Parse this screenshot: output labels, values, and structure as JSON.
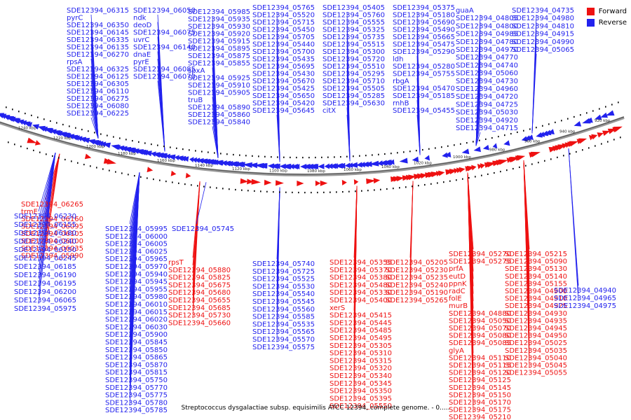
{
  "legend": {
    "forward_label": "Forward",
    "reverse_label": "Reverse",
    "forward_color": "#ee1111",
    "reverse_color": "#2222ee"
  },
  "caption": "Streptococcus dysgalactiae subsp. equisimilis ATCC 12394, complete genome. - 0.....",
  "scale_labels": [
    "1240 kbp",
    "1220 kbp",
    "1200 kbp",
    "1180 kbp",
    "1160 kbp",
    "1140 kbp",
    "1120 kbp",
    "1100 kbp",
    "1080 kbp",
    "1060 kbp",
    "1040 kbp",
    "1020 kbp",
    "1000 kbp",
    "980 kbp",
    "960 kbp",
    "940 kbp",
    "920 kbp"
  ],
  "reverse_genes_upper": [
    "SDE12394_06315",
    "pyrC",
    "SDE12394_06350",
    "SDE12394_06145",
    "SDE12394_06335",
    "SDE12394_06135",
    "SDE12394_06270",
    "rpsA",
    "SDE12394_06325",
    "SDE12394_06125",
    "SDE12394_06305",
    "SDE12394_06110",
    "SDE12394_06275",
    "SDE12394_06080",
    "SDE12394_06225",
    "SDE12394_06050",
    "ndk",
    "deoD",
    "SDE12394_06075",
    "uvrC",
    "SDE12394_06140",
    "dnaE",
    "pyrE",
    "SDE12394_06085",
    "SDE12394_06070",
    "SDE12394_05985",
    "SDE12394_05935",
    "SDE12394_05930",
    "SDE12394_05920",
    "SDE12394_05915",
    "SDE12394_05895",
    "SDE12394_05875",
    "SDE12394_05855",
    "spxA",
    "SDE12394_05925",
    "SDE12394_05910",
    "SDE12394_05905",
    "truB",
    "SDE12394_05890",
    "SDE12394_05860",
    "SDE12394_05840",
    "SDE12394_05765",
    "SDE12394_05520",
    "SDE12394_05715",
    "SDE12394_05450",
    "SDE12394_05705",
    "SDE12394_05440",
    "SDE12394_05700",
    "SDE12394_05435",
    "SDE12394_05695",
    "SDE12394_05430",
    "SDE12394_05670",
    "SDE12394_05425",
    "SDE12394_05650",
    "SDE12394_05420",
    "SDE12394_05645",
    "SDE12394_05405",
    "SDE12394_05760",
    "SDE12394_05555",
    "SDE12394_05325",
    "SDE12394_05735",
    "SDE12394_05515",
    "SDE12394_05300",
    "SDE12394_05720",
    "SDE12394_05510",
    "SDE12394_05295",
    "SDE12394_05710",
    "SDE12394_05505",
    "SDE12394_05285",
    "SDE12394_05630",
    "citX",
    "SDE12394_05375",
    "SDE12394_05180",
    "SDE12394_05690",
    "SDE12394_05490",
    "SDE12394_05665",
    "SDE12394_05475",
    "SDE12394_05290",
    "ldh",
    "SDE12394_05280",
    "SDE12394_05755",
    "rbgA",
    "SDE12394_05470",
    "SDE12394_05185",
    "rnhB",
    "SDE12394_05455",
    "guaA",
    "SDE12394_04805",
    "SDE12394_04800",
    "SDE12394_04985",
    "SDE12394_04780",
    "SDE12394_04970",
    "SDE12394_04770",
    "SDE12394_04740",
    "SDE12394_05060",
    "SDE12394_04730",
    "SDE12394_04960",
    "SDE12394_04720",
    "SDE12394_04725",
    "SDE12394_05030",
    "SDE12394_04920",
    "SDE12394_04715",
    "SDE12394_04735",
    "SDE12394_04980",
    "SDE12394_04810",
    "SDE12394_04915",
    "SDE12394_04990",
    "SDE12394_05065"
  ],
  "forward_genes_lower": [
    "SDE12394_06265",
    "trmE",
    "SDE12394_06160",
    "SDE12394_06095",
    "SDE12394_06105",
    "SDE12394_06100",
    "SDE12394_06035",
    "SDE12394_05990",
    "rpsT",
    "SDE12394_05880",
    "SDE12394_05825",
    "SDE12394_05675",
    "SDE12394_05680",
    "SDE12394_05655",
    "SDE12394_05685",
    "SDE12394_05730",
    "SDE12394_05660",
    "SDE12394_05355",
    "SDE12394_05370",
    "SDE12394_05380",
    "SDE12394_05480",
    "SDE12394_05330",
    "SDE12394_05400",
    "xerS",
    "SDE12394_05415",
    "SDE12394_05445",
    "SDE12394_05485",
    "SDE12394_05495",
    "SDE12394_05305",
    "SDE12394_05310",
    "SDE12394_05315",
    "SDE12394_05320",
    "SDE12394_05340",
    "SDE12394_05345",
    "SDE12394_05350",
    "SDE12394_05395",
    "SDE12394_05550",
    "SDE12394_05205",
    "SDE12394_05230",
    "SDE12394_05235",
    "SDE12394_05240",
    "SDE12394_05190",
    "SDE12394_05265",
    "SDE12394_05270",
    "SDE12394_05275",
    "prfA",
    "eutD",
    "ppnK",
    "radC",
    "folE",
    "murB",
    "SDE12394_04880",
    "SDE12394_05050",
    "SDE12394_05070",
    "SDE12394_05080",
    "SDE12394_05085",
    "glyA",
    "SDE12394_05110",
    "SDE12394_05115",
    "SDE12394_05120",
    "SDE12394_05125",
    "SDE12394_05145",
    "SDE12394_05150",
    "SDE12394_05170",
    "SDE12394_05175",
    "SDE12394_05210",
    "SDE12394_05215",
    "SDE12394_05090",
    "SDE12394_05130",
    "SDE12394_05140",
    "SDE12394_05155",
    "SDE12394_04900",
    "SDE12394_04910",
    "SDE12394_04925",
    "SDE12394_04930",
    "SDE12394_04935",
    "SDE12394_04945",
    "SDE12394_04950",
    "SDE12394_05025",
    "SDE12394_05035",
    "SDE12394_05040",
    "SDE12394_05045",
    "SDE12394_05055"
  ],
  "reverse_genes_lower": [
    "SDE12394_06230",
    "SDE12394_06155",
    "SDE12394_06180",
    "SDE12394_06240",
    "SDE12394_06150",
    "SDE12394_06245",
    "SDE12394_06185",
    "SDE12394_06190",
    "SDE12394_06195",
    "SDE12394_06200",
    "SDE12394_06065",
    "SDE12394_05975",
    "SDE12394_05995",
    "SDE12394_06000",
    "SDE12394_06005",
    "SDE12394_06025",
    "SDE12394_05965",
    "SDE12394_05970",
    "SDE12394_05940",
    "SDE12394_05945",
    "SDE12394_05955",
    "SDE12394_05980",
    "SDE12394_06010",
    "SDE12394_06015",
    "SDE12394_06020",
    "SDE12394_06030",
    "SDE12394_05900",
    "SDE12394_05845",
    "SDE12394_05850",
    "SDE12394_05865",
    "SDE12394_05870",
    "SDE12394_05815",
    "SDE12394_05750",
    "SDE12394_05770",
    "SDE12394_05775",
    "SDE12394_05780",
    "SDE12394_05785",
    "SDE12394_05745",
    "SDE12394_05740",
    "SDE12394_05725",
    "SDE12394_05525",
    "SDE12394_05530",
    "SDE12394_05540",
    "SDE12394_05545",
    "SDE12394_05560",
    "SDE12394_05585",
    "SDE12394_05535",
    "SDE12394_05565",
    "SDE12394_05570",
    "SDE12394_05575",
    "SDE12394_04940",
    "SDE12394_04965",
    "SDE12394_04975"
  ]
}
